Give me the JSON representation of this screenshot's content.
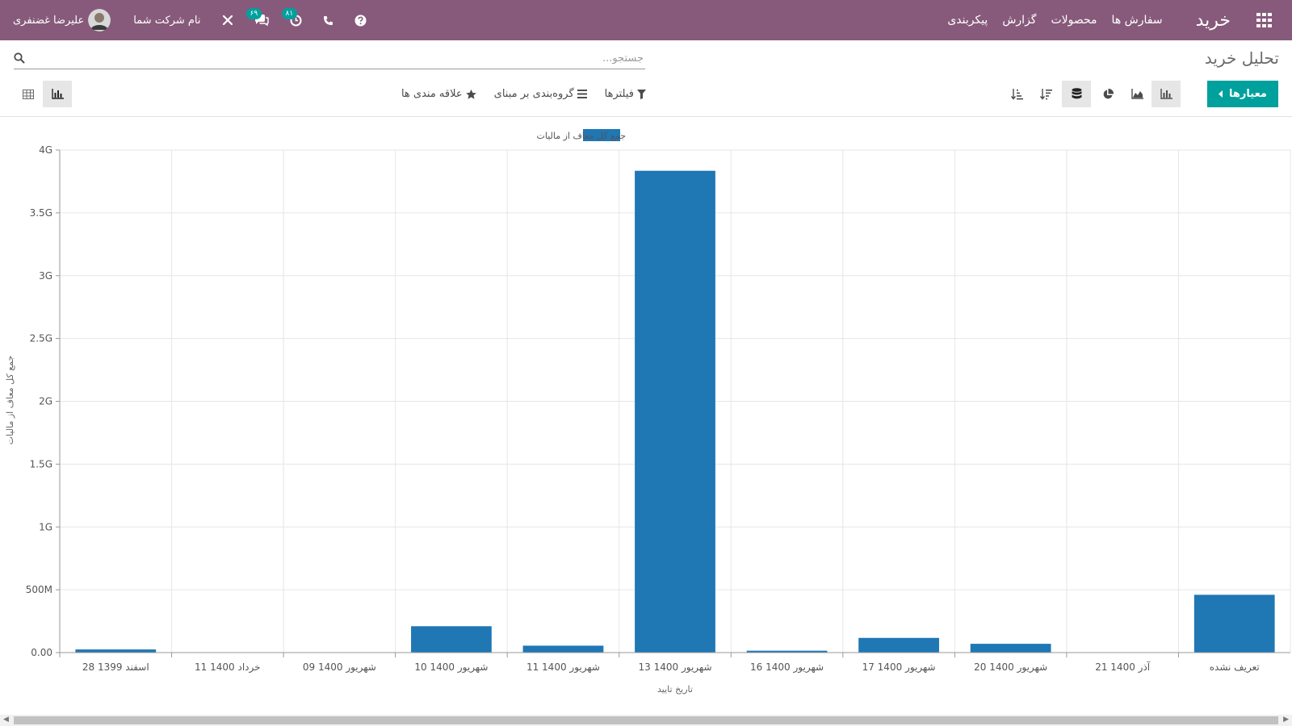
{
  "navbar": {
    "app_name": "خرید",
    "menu": [
      "سفارش ها",
      "محصولات",
      "گزارش",
      "پیکربندی"
    ],
    "user_name": "علیرضا غضنفری",
    "company": "نام شرکت شما",
    "activity_count": "۸۱",
    "messages_count": "۶۹",
    "icons": [
      "apps-icon",
      "help-icon",
      "phone-icon",
      "clock-icon",
      "chat-icon",
      "debug-icon"
    ]
  },
  "control_panel": {
    "title": "تحلیل خرید",
    "search_placeholder": "جستجو...",
    "measures_label": "معیارها",
    "filters_label": "فیلترها",
    "groupby_label": "گروه‌بندی بر مبنای",
    "favorites_label": "علاقه مندی ها"
  },
  "chart_data": {
    "type": "bar",
    "xlabel": "تاریخ تایید",
    "ylabel": "جمع کل معاف از مالیات",
    "categories": [
      "28 اسفند 1399",
      "11 خرداد 1400",
      "09 شهریور 1400",
      "10 شهریور 1400",
      "11 شهریور 1400",
      "13 شهریور 1400",
      "16 شهریور 1400",
      "17 شهریور 1400",
      "20 شهریور 1400",
      "21 آذر 1400",
      "تعریف نشده"
    ],
    "series": [
      {
        "name": "جمع کل معاف از مالیات",
        "values": [
          25000000,
          2000000,
          1000000,
          210000000,
          55000000,
          3835000000,
          15000000,
          117000000,
          70000000,
          1000000,
          460000000
        ],
        "color": "#1f77b4"
      }
    ],
    "ylim": [
      0,
      4000000000
    ],
    "yticks": [
      "0.00",
      "500M",
      "1G",
      "1.5G",
      "2G",
      "2.5G",
      "3G",
      "3.5G",
      "4G"
    ],
    "grid": true,
    "legend": "top"
  }
}
